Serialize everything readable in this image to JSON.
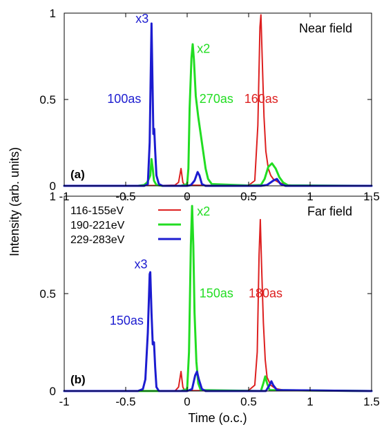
{
  "colors": {
    "red": "#dd1f1f",
    "green": "#22dd22",
    "blue": "#1c1cd0"
  },
  "xlabel": "Time (o.c.)",
  "ylabel": "Intensity (arb. units)",
  "legend": [
    {
      "label": "116-155eV",
      "color_key": "red"
    },
    {
      "label": "190-221eV",
      "color_key": "green"
    },
    {
      "label": "229-283eV",
      "color_key": "blue"
    }
  ],
  "chart_data": [
    {
      "type": "line",
      "panel_label": "(a)",
      "title": "Near field",
      "xlim": [
        -1,
        1.5
      ],
      "ylim": [
        0,
        1
      ],
      "x_ticks": [
        "-1",
        "-0.5",
        "0",
        "0.5",
        "1",
        "1.5"
      ],
      "y_ticks": [
        "0",
        "0.5",
        "1"
      ],
      "series": [
        {
          "name": "116-155eV",
          "color_key": "red",
          "width": 2,
          "points": [
            [
              -1,
              0
            ],
            [
              -0.6,
              0
            ],
            [
              -0.45,
              0.002
            ],
            [
              -0.2,
              0.002
            ],
            [
              -0.1,
              0.004
            ],
            [
              -0.07,
              0.02
            ],
            [
              -0.05,
              0.1
            ],
            [
              -0.035,
              0.02
            ],
            [
              -0.02,
              0.004
            ],
            [
              0.3,
              0.002
            ],
            [
              0.5,
              0.003
            ],
            [
              0.55,
              0.03
            ],
            [
              0.575,
              0.35
            ],
            [
              0.592,
              0.92
            ],
            [
              0.6,
              0.99
            ],
            [
              0.61,
              0.75
            ],
            [
              0.625,
              0.4
            ],
            [
              0.64,
              0.2
            ],
            [
              0.66,
              0.1
            ],
            [
              0.68,
              0.06
            ],
            [
              0.7,
              0.04
            ],
            [
              0.72,
              0.03
            ],
            [
              0.75,
              0.018
            ],
            [
              0.8,
              0.006
            ],
            [
              0.9,
              0.002
            ],
            [
              1.5,
              0
            ]
          ]
        },
        {
          "name": "190-221eV",
          "color_key": "green",
          "width": 3,
          "points": [
            [
              -1,
              0
            ],
            [
              -0.4,
              0
            ],
            [
              -0.35,
              0.005
            ],
            [
              -0.325,
              0.02
            ],
            [
              -0.3,
              0.06
            ],
            [
              -0.29,
              0.155
            ],
            [
              -0.28,
              0.1
            ],
            [
              -0.27,
              0.03
            ],
            [
              -0.25,
              0.005
            ],
            [
              -0.2,
              0
            ],
            [
              -0.05,
              0
            ],
            [
              0,
              0.01
            ],
            [
              0.01,
              0.1
            ],
            [
              0.02,
              0.45
            ],
            [
              0.035,
              0.74
            ],
            [
              0.045,
              0.82
            ],
            [
              0.055,
              0.73
            ],
            [
              0.07,
              0.52
            ],
            [
              0.09,
              0.4
            ],
            [
              0.11,
              0.3
            ],
            [
              0.13,
              0.2
            ],
            [
              0.15,
              0.1
            ],
            [
              0.17,
              0.04
            ],
            [
              0.2,
              0.01
            ],
            [
              0.5,
              0.002
            ],
            [
              0.6,
              0.005
            ],
            [
              0.63,
              0.04
            ],
            [
              0.66,
              0.11
            ],
            [
              0.69,
              0.13
            ],
            [
              0.72,
              0.1
            ],
            [
              0.75,
              0.05
            ],
            [
              0.78,
              0.02
            ],
            [
              0.82,
              0.003
            ],
            [
              1.5,
              0
            ]
          ]
        },
        {
          "name": "229-283eV",
          "color_key": "blue",
          "width": 3,
          "points": [
            [
              -1,
              0
            ],
            [
              -0.5,
              0
            ],
            [
              -0.35,
              0
            ],
            [
              -0.32,
              0.01
            ],
            [
              -0.305,
              0.25
            ],
            [
              -0.29,
              0.94
            ],
            [
              -0.282,
              0.6
            ],
            [
              -0.275,
              0.3
            ],
            [
              -0.268,
              0.33
            ],
            [
              -0.26,
              0.2
            ],
            [
              -0.25,
              0.06
            ],
            [
              -0.23,
              0.01
            ],
            [
              -0.2,
              0
            ],
            [
              0,
              0
            ],
            [
              0.03,
              0.004
            ],
            [
              0.06,
              0.03
            ],
            [
              0.085,
              0.08
            ],
            [
              0.1,
              0.06
            ],
            [
              0.12,
              0.01
            ],
            [
              0.15,
              0
            ],
            [
              0.6,
              0
            ],
            [
              0.65,
              0.005
            ],
            [
              0.7,
              0.03
            ],
            [
              0.73,
              0.04
            ],
            [
              0.76,
              0.01
            ],
            [
              0.8,
              0
            ],
            [
              1.5,
              0
            ]
          ]
        }
      ],
      "annotations": [
        {
          "text": "x3",
          "color_key": "blue",
          "x": -0.42,
          "y": 0.945
        },
        {
          "text": "100as",
          "color_key": "blue",
          "x": -0.65,
          "y": 0.48
        },
        {
          "text": "x2",
          "color_key": "green",
          "x": 0.08,
          "y": 0.77
        },
        {
          "text": "270as",
          "color_key": "green",
          "x": 0.1,
          "y": 0.48
        },
        {
          "text": "160as",
          "color_key": "red",
          "x": 0.465,
          "y": 0.48
        }
      ]
    },
    {
      "type": "line",
      "panel_label": "(b)",
      "title": "Far field",
      "xlim": [
        -1,
        1.5
      ],
      "ylim": [
        0,
        1
      ],
      "x_ticks": [
        "-1",
        "-0.5",
        "0",
        "0.5",
        "1",
        "1.5"
      ],
      "y_ticks": [
        "0",
        "0.5",
        "1"
      ],
      "series": [
        {
          "name": "116-155eV",
          "color_key": "red",
          "width": 2,
          "points": [
            [
              -1,
              0
            ],
            [
              -0.1,
              0
            ],
            [
              -0.07,
              0.02
            ],
            [
              -0.05,
              0.1
            ],
            [
              -0.035,
              0.02
            ],
            [
              -0.02,
              0.002
            ],
            [
              0.5,
              0.003
            ],
            [
              0.55,
              0.03
            ],
            [
              0.57,
              0.2
            ],
            [
              0.585,
              0.7
            ],
            [
              0.595,
              0.88
            ],
            [
              0.605,
              0.65
            ],
            [
              0.62,
              0.35
            ],
            [
              0.635,
              0.16
            ],
            [
              0.65,
              0.07
            ],
            [
              0.68,
              0.03
            ],
            [
              0.72,
              0.012
            ],
            [
              0.8,
              0.003
            ],
            [
              1.5,
              0
            ]
          ]
        },
        {
          "name": "190-221eV",
          "color_key": "green",
          "width": 3,
          "points": [
            [
              -1,
              0
            ],
            [
              -0.05,
              0
            ],
            [
              0,
              0.01
            ],
            [
              0.015,
              0.2
            ],
            [
              0.03,
              0.75
            ],
            [
              0.04,
              0.95
            ],
            [
              0.05,
              0.75
            ],
            [
              0.06,
              0.4
            ],
            [
              0.075,
              0.15
            ],
            [
              0.09,
              0.04
            ],
            [
              0.11,
              0.005
            ],
            [
              0.6,
              0
            ],
            [
              0.62,
              0.04
            ],
            [
              0.635,
              0.075
            ],
            [
              0.65,
              0.04
            ],
            [
              0.67,
              0.005
            ],
            [
              1.5,
              0
            ]
          ]
        },
        {
          "name": "229-283eV",
          "color_key": "blue",
          "width": 3,
          "points": [
            [
              -1,
              0
            ],
            [
              -0.4,
              0
            ],
            [
              -0.36,
              0.01
            ],
            [
              -0.34,
              0.06
            ],
            [
              -0.32,
              0.3
            ],
            [
              -0.305,
              0.6
            ],
            [
              -0.3,
              0.61
            ],
            [
              -0.29,
              0.4
            ],
            [
              -0.28,
              0.24
            ],
            [
              -0.27,
              0.25
            ],
            [
              -0.26,
              0.12
            ],
            [
              -0.25,
              0.02
            ],
            [
              -0.23,
              0
            ],
            [
              0,
              0
            ],
            [
              0.04,
              0.01
            ],
            [
              0.065,
              0.08
            ],
            [
              0.08,
              0.1
            ],
            [
              0.095,
              0.06
            ],
            [
              0.12,
              0.01
            ],
            [
              0.15,
              0
            ],
            [
              0.64,
              0
            ],
            [
              0.67,
              0.03
            ],
            [
              0.685,
              0.05
            ],
            [
              0.7,
              0.03
            ],
            [
              0.73,
              0.005
            ],
            [
              1.5,
              0
            ]
          ]
        }
      ],
      "annotations": [
        {
          "text": "x3",
          "color_key": "blue",
          "x": -0.43,
          "y": 0.63
        },
        {
          "text": "150as",
          "color_key": "blue",
          "x": -0.63,
          "y": 0.34
        },
        {
          "text": "x2",
          "color_key": "green",
          "x": 0.08,
          "y": 0.9
        },
        {
          "text": "150as",
          "color_key": "green",
          "x": 0.1,
          "y": 0.48
        },
        {
          "text": "180as",
          "color_key": "red",
          "x": 0.5,
          "y": 0.48
        }
      ]
    }
  ]
}
